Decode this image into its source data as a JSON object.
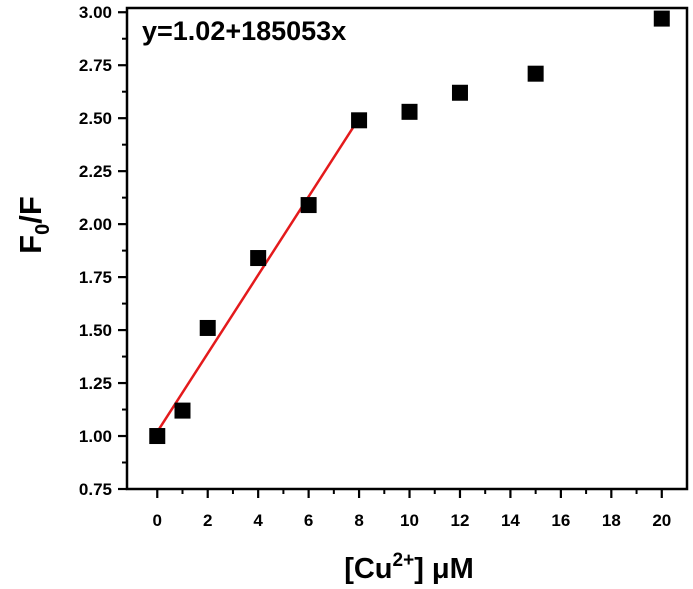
{
  "chart_data": {
    "type": "scatter",
    "xlabel_prefix": "[Cu",
    "xlabel_superscript": "2+",
    "xlabel_suffix": "] μM",
    "ylabel_main": "F",
    "ylabel_subscript": "0",
    "ylabel_suffix": "/F",
    "xlim": [
      -1.2,
      21
    ],
    "ylim": [
      0.75,
      3.02
    ],
    "x_ticks": [
      0,
      2,
      4,
      6,
      8,
      10,
      12,
      14,
      16,
      18,
      20
    ],
    "y_ticks": [
      "0.75",
      "1.00",
      "1.25",
      "1.50",
      "1.75",
      "2.00",
      "2.25",
      "2.50",
      "2.75",
      "3.00"
    ],
    "grid": false,
    "legend": "none",
    "marker_color": "#000000",
    "fit_color": "#e41a1c",
    "annotation": "y=1.02+185053x",
    "points": [
      {
        "x": 0,
        "y": 1.0
      },
      {
        "x": 1,
        "y": 1.12
      },
      {
        "x": 2,
        "y": 1.51
      },
      {
        "x": 4,
        "y": 1.84
      },
      {
        "x": 6,
        "y": 2.09
      },
      {
        "x": 8,
        "y": 2.49
      },
      {
        "x": 10,
        "y": 2.53
      },
      {
        "x": 12,
        "y": 2.62
      },
      {
        "x": 15,
        "y": 2.71
      },
      {
        "x": 20,
        "y": 2.97
      }
    ],
    "fit_line": {
      "x": [
        0,
        8
      ],
      "y": [
        1.02,
        2.5
      ]
    }
  }
}
